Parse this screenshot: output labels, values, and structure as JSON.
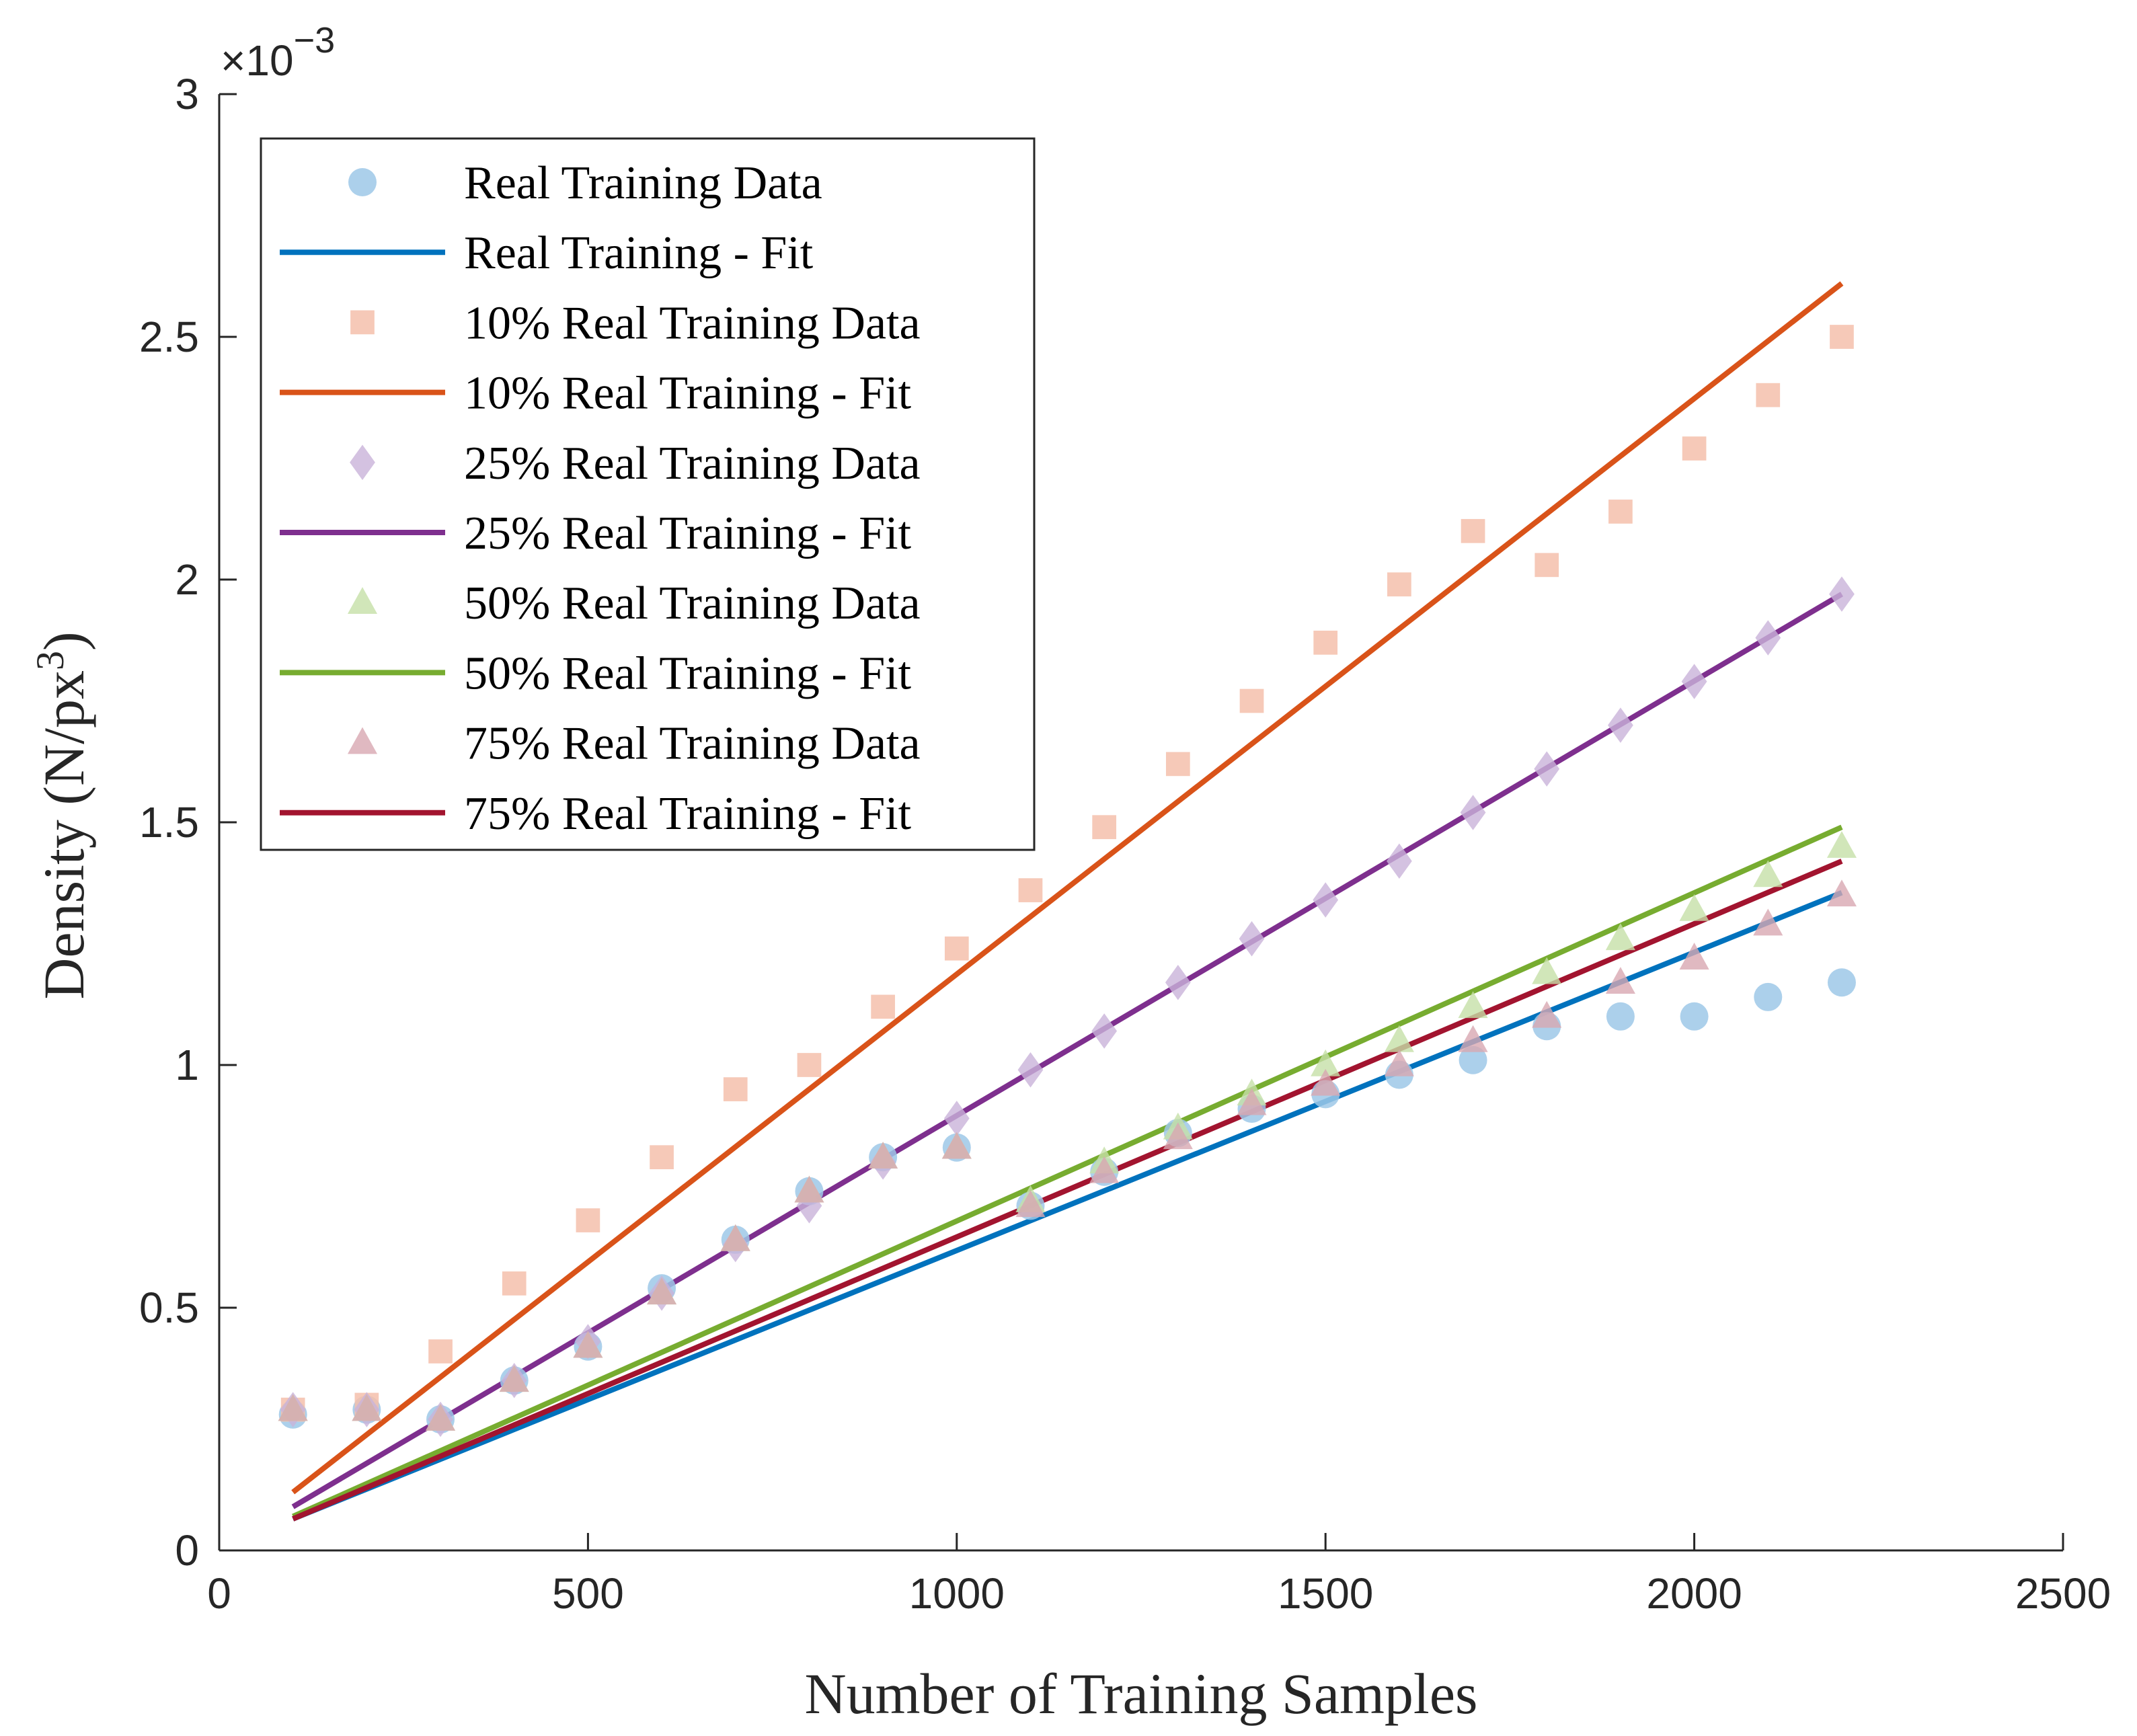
{
  "chart_data": {
    "type": "scatter",
    "xlabel": "Number of Training Samples",
    "ylabel_main": "Density (N/px",
    "ylabel_sup": "3",
    "ylabel_close": ")",
    "y_exponent_prefix": "×10",
    "y_exponent_sup": "−3",
    "xlim": [
      0,
      2500
    ],
    "ylim": [
      0,
      3
    ],
    "xticks": [
      0,
      500,
      1000,
      1500,
      2000,
      2500
    ],
    "xtick_labels": [
      "0",
      "500",
      "1000",
      "1500",
      "2000",
      "2500"
    ],
    "yticks": [
      0,
      0.5,
      1,
      1.5,
      2,
      2.5,
      3
    ],
    "ytick_labels": [
      "0",
      "0.5",
      "1",
      "1.5",
      "2",
      "2.5",
      "3"
    ],
    "legend_position": "top-left",
    "grid": false,
    "x": [
      100,
      200,
      300,
      400,
      500,
      600,
      700,
      800,
      900,
      1000,
      1100,
      1200,
      1300,
      1400,
      1500,
      1600,
      1700,
      1800,
      1900,
      2000,
      2100,
      2200
    ],
    "series": [
      {
        "name": "Real Training Data",
        "kind": "scatter",
        "marker": "circle",
        "color": "#9dc8e8",
        "values": [
          0.28,
          0.29,
          0.27,
          0.35,
          0.42,
          0.54,
          0.64,
          0.74,
          0.81,
          0.83,
          0.71,
          0.78,
          0.86,
          0.91,
          0.94,
          0.98,
          1.01,
          1.08,
          1.1,
          1.1,
          1.14,
          1.17
        ]
      },
      {
        "name": "Real Training - Fit",
        "kind": "line",
        "color": "#0072bd",
        "x_range": [
          100,
          2200
        ],
        "y_range": [
          0.065,
          1.355
        ]
      },
      {
        "name": "10% Real Training Data",
        "kind": "scatter",
        "marker": "square",
        "color": "#f5bfac",
        "values": [
          0.29,
          0.3,
          0.41,
          0.55,
          0.68,
          0.81,
          0.95,
          1.0,
          1.12,
          1.24,
          1.36,
          1.49,
          1.62,
          1.75,
          1.87,
          1.99,
          2.1,
          2.03,
          2.14,
          2.27,
          2.38,
          2.5
        ]
      },
      {
        "name": "10% Real Training - Fit",
        "kind": "line",
        "color": "#d95319",
        "x_range": [
          100,
          2200
        ],
        "y_range": [
          0.12,
          2.61
        ]
      },
      {
        "name": "25% Real Training Data",
        "kind": "scatter",
        "marker": "diamond",
        "color": "#c9b3d9",
        "values": [
          0.29,
          0.29,
          0.27,
          0.35,
          0.43,
          0.53,
          0.63,
          0.71,
          0.8,
          0.89,
          0.99,
          1.07,
          1.17,
          1.26,
          1.34,
          1.42,
          1.52,
          1.61,
          1.7,
          1.79,
          1.88,
          1.97
        ]
      },
      {
        "name": "25% Real Training - Fit",
        "kind": "line",
        "color": "#7e2f8e",
        "x_range": [
          100,
          2200
        ],
        "y_range": [
          0.09,
          1.97
        ]
      },
      {
        "name": "50% Real Training Data",
        "kind": "scatter",
        "marker": "triangle",
        "color": "#c6e0a8",
        "values": [
          0.29,
          0.29,
          0.27,
          0.35,
          0.42,
          0.53,
          0.64,
          0.74,
          0.81,
          0.83,
          0.72,
          0.8,
          0.87,
          0.94,
          1.0,
          1.05,
          1.12,
          1.19,
          1.26,
          1.32,
          1.39,
          1.45
        ]
      },
      {
        "name": "50% Real Training - Fit",
        "kind": "line",
        "color": "#77ac30",
        "x_range": [
          100,
          2200
        ],
        "y_range": [
          0.07,
          1.49
        ]
      },
      {
        "name": "75% Real Training Data",
        "kind": "scatter",
        "marker": "triangle",
        "color": "#d8a7b2",
        "values": [
          0.29,
          0.29,
          0.27,
          0.35,
          0.42,
          0.53,
          0.64,
          0.74,
          0.81,
          0.83,
          0.71,
          0.78,
          0.85,
          0.92,
          0.96,
          1.0,
          1.05,
          1.1,
          1.17,
          1.22,
          1.29,
          1.35
        ]
      },
      {
        "name": "75% Real Training - Fit",
        "kind": "line",
        "color": "#a2142f",
        "x_range": [
          100,
          2200
        ],
        "y_range": [
          0.065,
          1.42
        ]
      }
    ]
  }
}
